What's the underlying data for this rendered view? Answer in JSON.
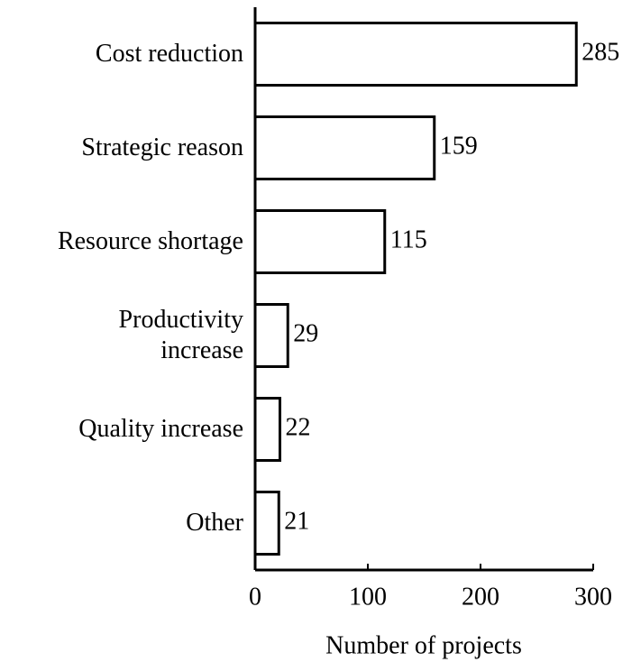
{
  "chart_data": {
    "type": "barh",
    "categories": [
      "Cost reduction",
      "Strategic reason",
      "Resource shortage",
      "Productivity\nincrease",
      "Quality increase",
      "Other"
    ],
    "values": [
      285,
      159,
      115,
      29,
      22,
      21
    ],
    "color": "#ffffff",
    "xlabel": "Number of projects",
    "xlim": [
      0,
      300
    ],
    "xticks": [
      0,
      100,
      200,
      300
    ],
    "grid": false
  }
}
